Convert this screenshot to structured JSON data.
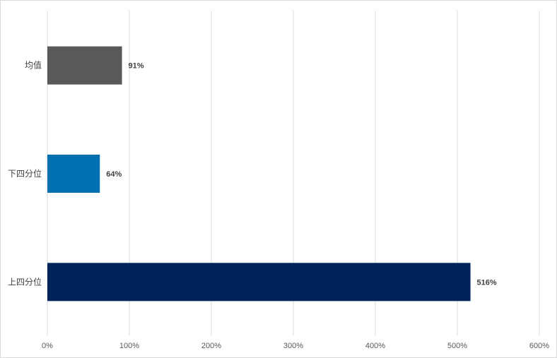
{
  "chart_data": {
    "type": "bar",
    "orientation": "horizontal",
    "categories": [
      "均值",
      "下四分位",
      "上四分位"
    ],
    "values": [
      91,
      64,
      516
    ],
    "value_labels": [
      "91%",
      "64%",
      "516%"
    ],
    "colors": [
      "#595959",
      "#0070b0",
      "#00245a"
    ],
    "xlim": [
      0,
      600
    ],
    "xticks": [
      0,
      100,
      200,
      300,
      400,
      500,
      600
    ],
    "xtick_labels": [
      "0%",
      "100%",
      "200%",
      "300%",
      "400%",
      "500%",
      "600%"
    ],
    "grid": "vertical",
    "legend": "none"
  }
}
